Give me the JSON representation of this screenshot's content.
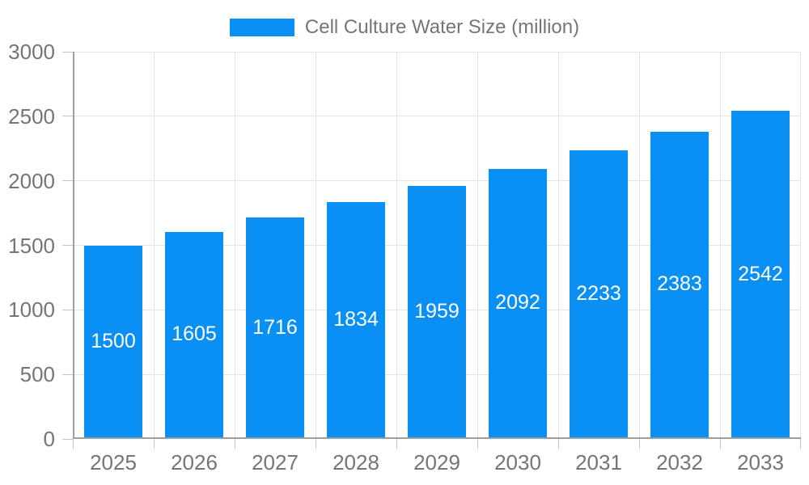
{
  "chart_data": {
    "type": "bar",
    "legend_label": "Cell Culture Water Size (million)",
    "legend_position": "top-center",
    "categories": [
      "2025",
      "2026",
      "2027",
      "2028",
      "2029",
      "2030",
      "2031",
      "2032",
      "2033"
    ],
    "values": [
      1500,
      1605,
      1716,
      1834,
      1959,
      2092,
      2233,
      2383,
      2542
    ],
    "series": [
      {
        "name": "Cell Culture Water Size (million)",
        "values": [
          1500,
          1605,
          1716,
          1834,
          1959,
          2092,
          2233,
          2383,
          2542
        ]
      }
    ],
    "title": "",
    "xlabel": "",
    "ylabel": "",
    "ylim": [
      0,
      3000
    ],
    "yticks": [
      0,
      500,
      1000,
      1500,
      2000,
      2500,
      3000
    ],
    "grid": true,
    "value_labels": "centered-inside-bars",
    "colors": {
      "bar": "#0a90f4",
      "value_label": "#ffffff",
      "axis_text": "#757575",
      "legend_text": "#757575",
      "gridline": "#e4e4e4",
      "tick": "#c2c2c2",
      "axis_line": "#9e9e9e",
      "background": "#ffffff"
    }
  }
}
